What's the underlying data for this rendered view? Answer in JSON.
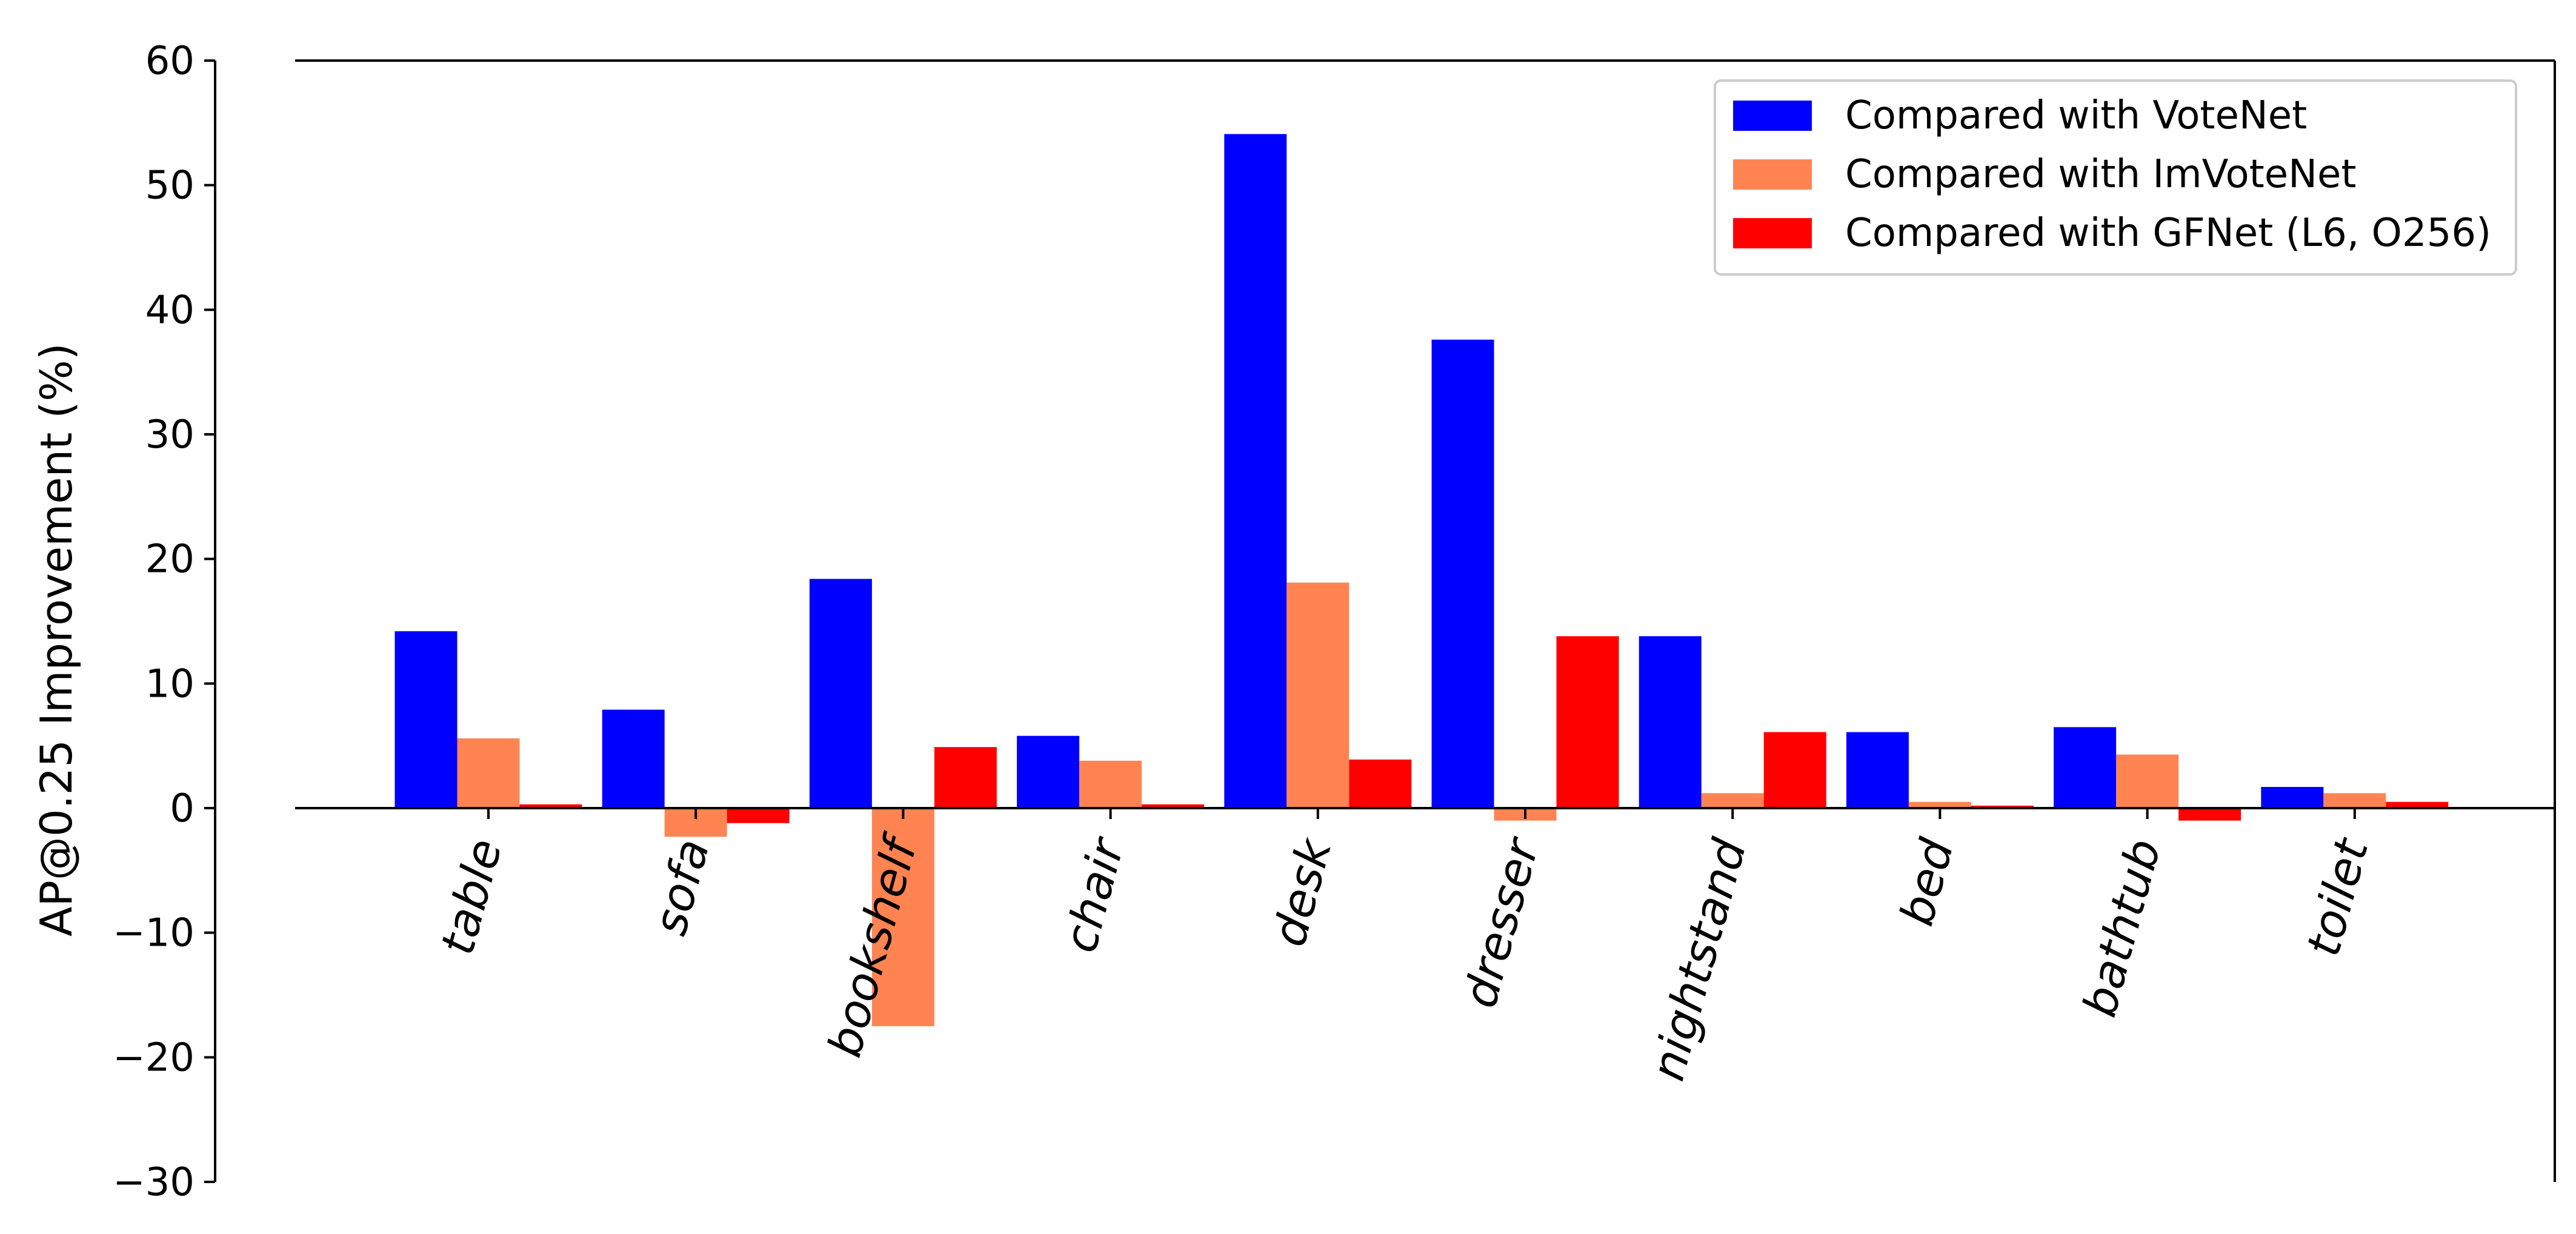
{
  "chart_data": {
    "type": "bar",
    "title": "",
    "xlabel": "",
    "ylabel": "AP@0.25 Improvement (%)",
    "ylim": [
      -30,
      60
    ],
    "yticks": [
      -30,
      -20,
      -10,
      0,
      10,
      20,
      30,
      40,
      50,
      60
    ],
    "ytick_labels": [
      "−30",
      "−20",
      "−10",
      "0",
      "10",
      "20",
      "30",
      "40",
      "50",
      "60"
    ],
    "grid": false,
    "legend_position": "top-right",
    "categories": [
      "table",
      "sofa",
      "bookshelf",
      "chair",
      "desk",
      "dresser",
      "nightstand",
      "bed",
      "bathtub",
      "toilet"
    ],
    "series": [
      {
        "name": "Compared with VoteNet",
        "color": "#0000ff",
        "values": [
          14.2,
          7.9,
          18.4,
          5.8,
          54.1,
          37.6,
          13.8,
          6.1,
          6.5,
          1.7
        ]
      },
      {
        "name": "Compared with ImVoteNet",
        "color": "#ff8452",
        "values": [
          5.6,
          -2.3,
          -17.5,
          3.8,
          18.1,
          -1.0,
          1.2,
          0.5,
          4.3,
          1.2
        ]
      },
      {
        "name": "Compared with GFNet (L6, O256)",
        "color": "#ff0000",
        "values": [
          0.3,
          -1.2,
          4.9,
          0.3,
          3.9,
          13.8,
          6.1,
          0.2,
          -1.0,
          0.5
        ]
      }
    ]
  }
}
